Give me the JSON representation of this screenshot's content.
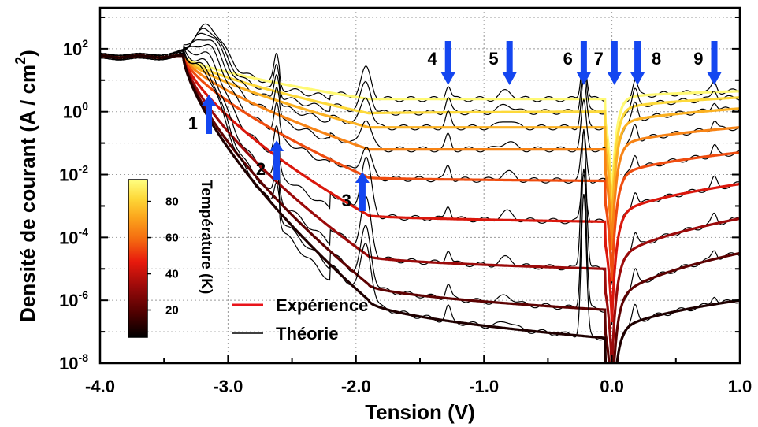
{
  "chart_data": {
    "type": "line",
    "xlabel": "Tension (V)",
    "ylabel": "Densité de courant (A / cm",
    "ylabel_sup": "2",
    "ylabel_end": ")",
    "xlim": [
      -4.0,
      1.0
    ],
    "ylim_log10": [
      -8,
      3.3
    ],
    "y_scale": "log",
    "grid": true,
    "x_ticks": [
      -4.0,
      -3.0,
      -2.0,
      -1.0,
      0.0,
      1.0
    ],
    "x_tick_labels": [
      "-4.0",
      "-3.0",
      "-2.0",
      "-1.0",
      "0.0",
      "1.0"
    ],
    "y_ticks": [
      {
        "exp": -8,
        "base": "10",
        "sup": "-8"
      },
      {
        "exp": -6,
        "base": "10",
        "sup": "-6"
      },
      {
        "exp": -4,
        "base": "10",
        "sup": "-4"
      },
      {
        "exp": -2,
        "base": "10",
        "sup": "-2"
      },
      {
        "exp": 0,
        "base": "10",
        "sup": "0"
      },
      {
        "exp": 2,
        "base": "10",
        "sup": "2"
      }
    ],
    "legend": {
      "position": "bottom-center",
      "entries": [
        {
          "label": "Expérience",
          "color": "#e8141b"
        },
        {
          "label": "Théorie",
          "color": "#000000"
        }
      ]
    },
    "colorbar": {
      "title": "Température (K)",
      "ticks": [
        "20",
        "40",
        "60",
        "80"
      ],
      "tick_values": [
        20,
        40,
        60,
        80
      ],
      "range": [
        5,
        92
      ],
      "colormap": [
        "#000000",
        "#4d0000",
        "#9a0a0a",
        "#e81a0d",
        "#f46a10",
        "#fba51c",
        "#fdd838",
        "#ffff80"
      ]
    },
    "markers": [
      {
        "label": "1",
        "x": -3.15,
        "direction": "up"
      },
      {
        "label": "2",
        "x": -2.62,
        "direction": "up"
      },
      {
        "label": "3",
        "x": -1.95,
        "direction": "up"
      },
      {
        "label": "4",
        "x": -1.28,
        "direction": "down"
      },
      {
        "label": "5",
        "x": -0.8,
        "direction": "down"
      },
      {
        "label": "6",
        "x": -0.22,
        "direction": "down"
      },
      {
        "label": "7",
        "x": 0.02,
        "direction": "down"
      },
      {
        "label": "8",
        "x": 0.2,
        "direction": "down"
      },
      {
        "label": "9",
        "x": 0.8,
        "direction": "down"
      }
    ],
    "arrow_color": "#1446f0",
    "experiment_series": [
      {
        "T": 90,
        "low": 0.4,
        "right": 0.65,
        "mid": 0.1
      },
      {
        "T": 80,
        "low": 0.0,
        "right": 0.45,
        "mid": -0.35
      },
      {
        "T": 70,
        "low": -0.5,
        "right": 0.1,
        "mid": -0.8
      },
      {
        "T": 60,
        "low": -1.2,
        "right": -0.5,
        "mid": -1.5
      },
      {
        "T": 50,
        "low": -2.2,
        "right": -1.3,
        "mid": -2.4
      },
      {
        "T": 40,
        "low": -3.5,
        "right": -2.3,
        "mid": -3.6
      },
      {
        "T": 30,
        "low": -5.0,
        "right": -3.4,
        "mid": -4.9
      },
      {
        "T": 20,
        "low": -6.3,
        "right": -4.5,
        "mid": -5.8
      },
      {
        "T": 10,
        "low": -7.2,
        "right": -6.0,
        "mid": -6.3
      }
    ]
  }
}
